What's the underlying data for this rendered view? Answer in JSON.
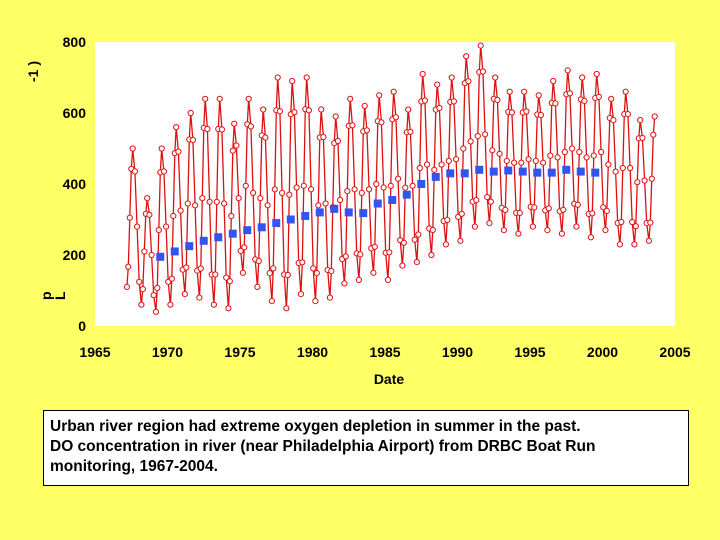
{
  "caption": {
    "line1": "Urban river region had extreme oxygen depletion in summer in the past.",
    "line2": "DO concentration in river (near Philadelphia Airport) from DRBC Boat Run",
    "line3": "monitoring, 1967-2004."
  },
  "chart_data": {
    "type": "line",
    "xlabel": "Date",
    "ylabel_fragments": [
      "-1 )",
      "p",
      "L"
    ],
    "xlim": [
      1965,
      2005
    ],
    "ylim": [
      0,
      800
    ],
    "x_ticks": [
      1965,
      1970,
      1975,
      1980,
      1985,
      1990,
      1995,
      2000,
      2005
    ],
    "y_ticks": [
      0,
      200,
      400,
      600,
      800
    ],
    "grid": false,
    "colors": {
      "raw": "#dd1111",
      "annual": "#3355ee",
      "plot_bg": "#ffffff",
      "page_bg": "#ffff66"
    },
    "series": [
      {
        "style": "red line with open circle markers (seasonal oscillation)",
        "annual_peaks": [
          [
            1967.6,
            500
          ],
          [
            1968.6,
            360
          ],
          [
            1969.6,
            500
          ],
          [
            1970.6,
            560
          ],
          [
            1971.6,
            600
          ],
          [
            1972.6,
            640
          ],
          [
            1973.6,
            640
          ],
          [
            1974.6,
            570
          ],
          [
            1975.6,
            640
          ],
          [
            1976.6,
            610
          ],
          [
            1977.6,
            700
          ],
          [
            1978.6,
            690
          ],
          [
            1979.6,
            700
          ],
          [
            1980.6,
            610
          ],
          [
            1981.6,
            590
          ],
          [
            1982.6,
            640
          ],
          [
            1983.6,
            620
          ],
          [
            1984.6,
            650
          ],
          [
            1985.6,
            660
          ],
          [
            1986.6,
            610
          ],
          [
            1987.6,
            710
          ],
          [
            1988.6,
            680
          ],
          [
            1989.6,
            700
          ],
          [
            1990.6,
            760
          ],
          [
            1991.6,
            790
          ],
          [
            1992.6,
            700
          ],
          [
            1993.6,
            660
          ],
          [
            1994.6,
            660
          ],
          [
            1995.6,
            650
          ],
          [
            1996.6,
            690
          ],
          [
            1997.6,
            720
          ],
          [
            1998.6,
            700
          ],
          [
            1999.6,
            710
          ],
          [
            2000.6,
            640
          ],
          [
            2001.6,
            660
          ],
          [
            2002.6,
            580
          ],
          [
            2003.6,
            590
          ]
        ],
        "annual_troughs": [
          [
            1967.2,
            110
          ],
          [
            1968.2,
            60
          ],
          [
            1969.2,
            40
          ],
          [
            1970.2,
            60
          ],
          [
            1971.2,
            90
          ],
          [
            1972.2,
            80
          ],
          [
            1973.2,
            60
          ],
          [
            1974.2,
            50
          ],
          [
            1975.2,
            150
          ],
          [
            1976.2,
            110
          ],
          [
            1977.2,
            70
          ],
          [
            1978.2,
            50
          ],
          [
            1979.2,
            90
          ],
          [
            1980.2,
            70
          ],
          [
            1981.2,
            80
          ],
          [
            1982.2,
            120
          ],
          [
            1983.2,
            130
          ],
          [
            1984.2,
            150
          ],
          [
            1985.2,
            130
          ],
          [
            1986.2,
            170
          ],
          [
            1987.2,
            180
          ],
          [
            1988.2,
            200
          ],
          [
            1989.2,
            230
          ],
          [
            1990.2,
            240
          ],
          [
            1991.2,
            280
          ],
          [
            1992.2,
            290
          ],
          [
            1993.2,
            270
          ],
          [
            1994.2,
            260
          ],
          [
            1995.2,
            280
          ],
          [
            1996.2,
            270
          ],
          [
            1997.2,
            260
          ],
          [
            1998.2,
            280
          ],
          [
            1999.2,
            250
          ],
          [
            2000.2,
            270
          ],
          [
            2001.2,
            230
          ],
          [
            2002.2,
            230
          ],
          [
            2003.2,
            240
          ]
        ]
      },
      {
        "style": "blue square markers (annual mean)",
        "x": [
          1969.5,
          1970.5,
          1971.5,
          1972.5,
          1973.5,
          1974.5,
          1975.5,
          1976.5,
          1977.5,
          1978.5,
          1979.5,
          1980.5,
          1981.5,
          1982.5,
          1983.5,
          1984.5,
          1985.5,
          1986.5,
          1987.5,
          1988.5,
          1989.5,
          1990.5,
          1991.5,
          1992.5,
          1993.5,
          1994.5,
          1995.5,
          1996.5,
          1997.5,
          1998.5,
          1999.5
        ],
        "values": [
          195,
          210,
          225,
          240,
          250,
          260,
          270,
          278,
          290,
          300,
          310,
          320,
          330,
          320,
          318,
          345,
          355,
          370,
          400,
          420,
          430,
          430,
          440,
          435,
          438,
          435,
          432,
          432,
          440,
          435,
          432
        ]
      }
    ]
  }
}
